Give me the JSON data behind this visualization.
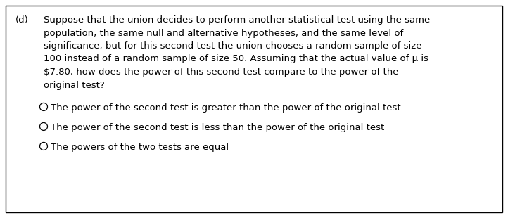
{
  "background_color": "#ffffff",
  "border_color": "#000000",
  "border_linewidth": 1.0,
  "label": "(d)",
  "paragraph_lines": [
    "Suppose that the union decides to perform another statistical test using the same",
    "population, the same null and alternative hypotheses, and the same level of",
    "significance, but for this second test the union chooses a random sample of size",
    "100 instead of a random sample of size 50. Assuming that the actual value of μ is",
    "$7.80, how does the power of this second test compare to the power of the",
    "original test?"
  ],
  "options": [
    "The power of the second test is greater than the power of the original test",
    "The power of the second test is less than the power of the original test",
    "The powers of the two tests are equal"
  ],
  "font_size": 9.5,
  "text_color": "#000000",
  "figwidth": 7.22,
  "figheight": 3.1,
  "dpi": 100
}
